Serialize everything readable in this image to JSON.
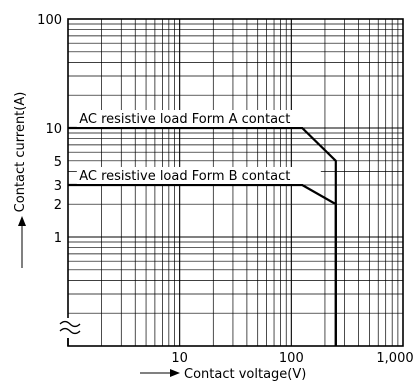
{
  "chart_data": {
    "type": "line",
    "title": "",
    "xlabel": "Contact voltage(V)",
    "ylabel": "Contact current(A)",
    "x_scale": "log",
    "y_scale": "log",
    "xlim": [
      1,
      1000
    ],
    "ylim": [
      0.1,
      100
    ],
    "grid": true,
    "x_tick_labels": [
      "10",
      "100",
      "1,000"
    ],
    "y_tick_labels": [
      "100",
      "10",
      "5",
      "3",
      "2",
      "1"
    ],
    "series": [
      {
        "name": "AC resistive load Form A contact",
        "x": [
          1,
          125,
          250,
          250
        ],
        "y": [
          10,
          10,
          5,
          0.1
        ]
      },
      {
        "name": "AC resistive load Form B contact",
        "x": [
          1,
          125,
          250,
          250
        ],
        "y": [
          3,
          3,
          2,
          0.1
        ]
      }
    ],
    "annotations": [
      "AC resistive load Form A contact",
      "AC resistive load Form B contact"
    ],
    "axis_break": "y"
  }
}
